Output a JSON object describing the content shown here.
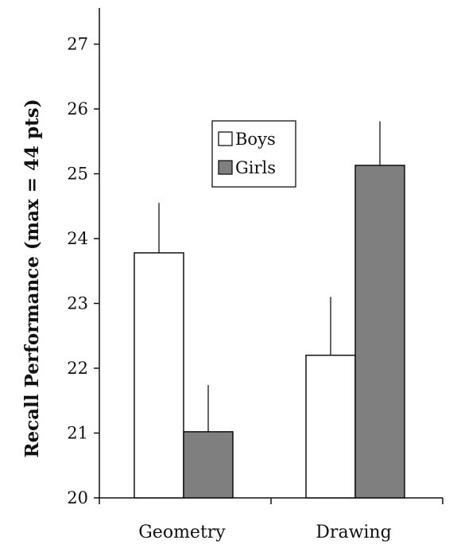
{
  "chart_data": {
    "type": "bar",
    "title": "",
    "xlabel": "",
    "ylabel": "Recall Performance (max = 44 pts)",
    "categories": [
      "Geometry",
      "Drawing"
    ],
    "series": [
      {
        "name": "Boys",
        "color": "#ffffff",
        "values": [
          23.78,
          22.2
        ],
        "error": [
          0.77,
          0.9
        ]
      },
      {
        "name": "Girls",
        "color": "#7f7f7f",
        "values": [
          21.02,
          25.13
        ],
        "error": [
          0.72,
          0.68
        ]
      }
    ],
    "ylim": [
      20,
      27
    ],
    "yticks": [
      "20",
      "21",
      "22",
      "23",
      "24",
      "25",
      "26",
      "27"
    ],
    "legend_position": "top-center",
    "grid": false,
    "error_bars": "upper"
  }
}
